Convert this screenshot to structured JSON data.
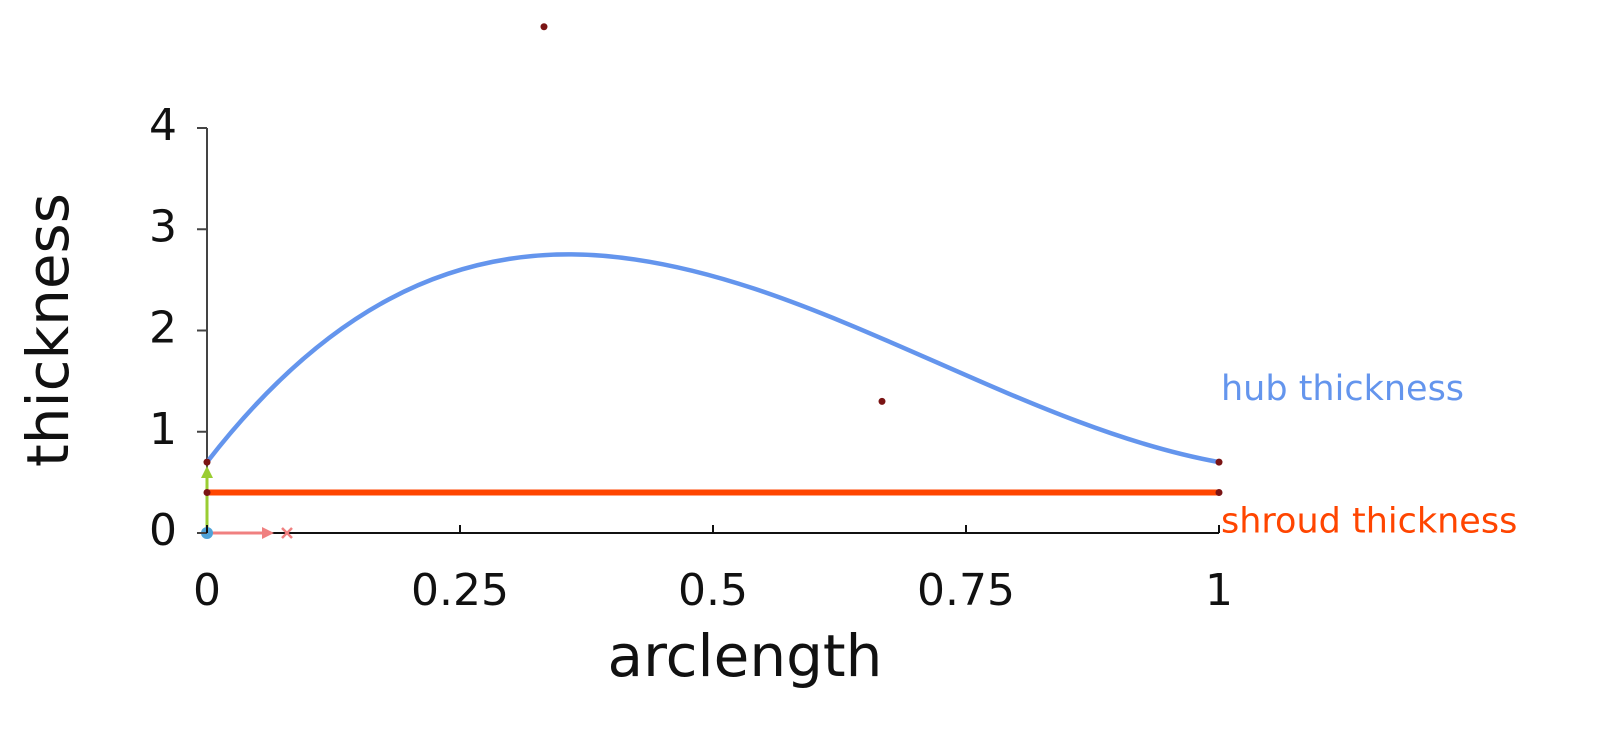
{
  "chart_data": {
    "type": "line",
    "curve": "bezier",
    "xlabel": "arclength",
    "ylabel": "thickness",
    "xlim": [
      0,
      1
    ],
    "xticks": [
      0,
      0.25,
      0.5,
      0.75,
      1
    ],
    "ylim": [
      0,
      4
    ],
    "yticks": [
      0,
      1,
      2,
      3,
      4
    ],
    "marker_color": "#7a1414",
    "series": [
      {
        "name": "hub thickness",
        "color": "#6495ed",
        "x": [
          0,
          0.333,
          0.667,
          1
        ],
        "values": [
          0.7,
          5.0,
          1.3,
          0.7
        ]
      },
      {
        "name": "shroud thickness",
        "color": "#ff4500",
        "x": [
          0,
          1
        ],
        "values": [
          0.4,
          0.4
        ]
      }
    ]
  }
}
